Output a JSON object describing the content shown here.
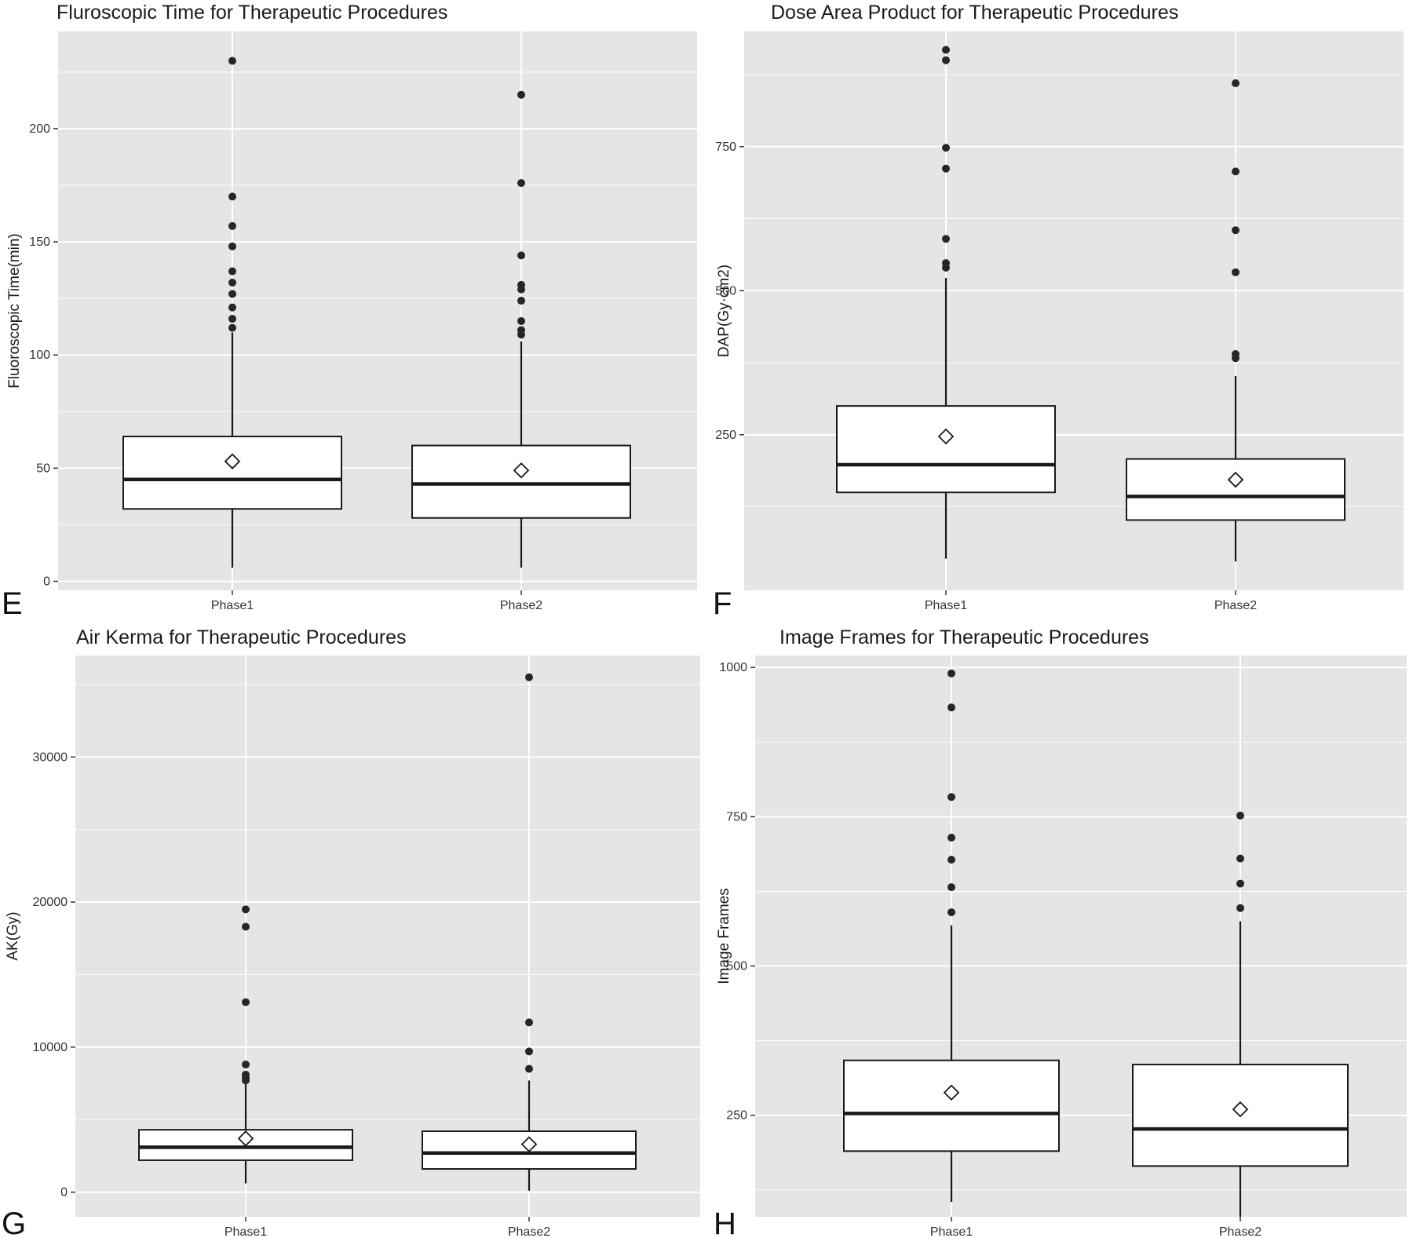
{
  "chart_data": [
    {
      "type": "box",
      "panel_label": "E",
      "title": "Fluroscopic Time for Therapeutic Procedures",
      "ylabel": "Fluoroscopic Time(min)",
      "xlabel": "",
      "ylim": [
        -4,
        243
      ],
      "yticks": [
        0,
        50,
        100,
        150,
        200
      ],
      "grid": true,
      "categories": [
        "Phase1",
        "Phase2"
      ],
      "boxes": [
        {
          "category": "Phase1",
          "whisker_low": 6,
          "q1": 32,
          "median": 45,
          "q3": 64,
          "whisker_high": 110,
          "mean": 53,
          "outliers": [
            112,
            116,
            121,
            127,
            132,
            137,
            148,
            157,
            170,
            230
          ]
        },
        {
          "category": "Phase2",
          "whisker_low": 6,
          "q1": 28,
          "median": 43,
          "q3": 60,
          "whisker_high": 106,
          "mean": 49,
          "outliers": [
            109,
            111,
            115,
            124,
            129,
            131,
            144,
            176,
            215
          ]
        }
      ]
    },
    {
      "type": "box",
      "panel_label": "F",
      "title": "Dose Area Product for Therapeutic Procedures",
      "ylabel": "DAP(Gy·cm2)",
      "xlabel": "",
      "ylim": [
        -20,
        950
      ],
      "yticks": [
        250,
        500,
        750
      ],
      "grid": true,
      "categories": [
        "Phase1",
        "Phase2"
      ],
      "boxes": [
        {
          "category": "Phase1",
          "whisker_low": 35,
          "q1": 150,
          "median": 198,
          "q3": 300,
          "whisker_high": 522,
          "mean": 247,
          "outliers": [
            540,
            548,
            590,
            712,
            748,
            900,
            918
          ]
        },
        {
          "category": "Phase2",
          "whisker_low": 30,
          "q1": 102,
          "median": 143,
          "q3": 208,
          "whisker_high": 352,
          "mean": 172,
          "outliers": [
            383,
            390,
            532,
            605,
            707,
            860
          ]
        }
      ]
    },
    {
      "type": "box",
      "panel_label": "G",
      "title": "Air Kerma for Therapeutic Procedures",
      "ylabel": "AK(Gy)",
      "xlabel": "",
      "ylim": [
        -1700,
        37000
      ],
      "yticks": [
        0,
        10000,
        20000,
        30000
      ],
      "grid": true,
      "categories": [
        "Phase1",
        "Phase2"
      ],
      "boxes": [
        {
          "category": "Phase1",
          "whisker_low": 600,
          "q1": 2200,
          "median": 3100,
          "q3": 4300,
          "whisker_high": 7500,
          "mean": 3700,
          "outliers": [
            7700,
            7900,
            8100,
            8800,
            13100,
            18300,
            19500
          ]
        },
        {
          "category": "Phase2",
          "whisker_low": 100,
          "q1": 1600,
          "median": 2700,
          "q3": 4200,
          "whisker_high": 7700,
          "mean": 3300,
          "outliers": [
            8500,
            9700,
            11700,
            35500
          ]
        }
      ]
    },
    {
      "type": "box",
      "panel_label": "H",
      "title": "Image Frames for Therapeutic Procedures",
      "ylabel": "Image Frames",
      "xlabel": "",
      "ylim": [
        80,
        1020
      ],
      "yticks": [
        250,
        500,
        750,
        1000
      ],
      "grid": true,
      "categories": [
        "Phase1",
        "Phase2"
      ],
      "boxes": [
        {
          "category": "Phase1",
          "whisker_low": 105,
          "q1": 190,
          "median": 253,
          "q3": 342,
          "whisker_high": 568,
          "mean": 288,
          "outliers": [
            590,
            632,
            678,
            715,
            783,
            933,
            990
          ]
        },
        {
          "category": "Phase2",
          "whisker_low": 80,
          "q1": 165,
          "median": 227,
          "q3": 335,
          "whisker_high": 575,
          "mean": 260,
          "outliers": [
            597,
            638,
            680,
            752
          ]
        }
      ]
    }
  ],
  "colors": {
    "panel_background": "#e5e5e5",
    "grid": "#ffffff",
    "box_fill": "#ffffff",
    "box_stroke": "#1a1a1a",
    "outlier": "#262626"
  }
}
